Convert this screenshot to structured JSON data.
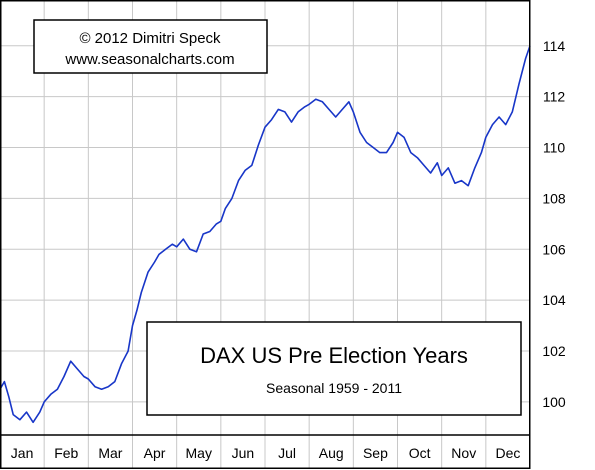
{
  "chart_data": {
    "type": "line",
    "title": "DAX US Pre Election Years",
    "subtitle": "Seasonal 1959 - 2011",
    "copyright": "© 2012  Dimitri Speck",
    "website": "www.seasonalcharts.com",
    "xlabel": "",
    "ylabel": "",
    "categories": [
      "Jan",
      "Feb",
      "Mar",
      "Apr",
      "May",
      "Jun",
      "Jul",
      "Aug",
      "Sep",
      "Oct",
      "Nov",
      "Dec"
    ],
    "ylim": [
      98.7,
      115.8
    ],
    "y_ticks": [
      100,
      102,
      104,
      106,
      108,
      110,
      112,
      114
    ],
    "grid": true,
    "line_color": "#1836c8",
    "series": [
      {
        "x": [
          0.0,
          0.1,
          0.2,
          0.3,
          0.45,
          0.6,
          0.75,
          0.9,
          1.0,
          1.15,
          1.3,
          1.45,
          1.6,
          1.75,
          1.9,
          2.0,
          2.15,
          2.3,
          2.45,
          2.6,
          2.75,
          2.9,
          3.0,
          3.1,
          3.2,
          3.35,
          3.5,
          3.6,
          3.75,
          3.9,
          4.0,
          4.15,
          4.3,
          4.45,
          4.6,
          4.75,
          4.9,
          5.0,
          5.1,
          5.25,
          5.4,
          5.55,
          5.7,
          5.85,
          6.0,
          6.15,
          6.3,
          6.45,
          6.6,
          6.75,
          6.9,
          7.0,
          7.15,
          7.3,
          7.45,
          7.6,
          7.75,
          7.9,
          8.0,
          8.15,
          8.3,
          8.45,
          8.6,
          8.75,
          8.9,
          9.0,
          9.15,
          9.3,
          9.45,
          9.6,
          9.75,
          9.9,
          10.0,
          10.15,
          10.3,
          10.45,
          10.6,
          10.75,
          10.9,
          11.0,
          11.15,
          11.3,
          11.45,
          11.6,
          11.75,
          11.9,
          12.0
        ],
        "values": [
          100.5,
          100.8,
          100.2,
          99.5,
          99.3,
          99.6,
          99.2,
          99.6,
          100.0,
          100.3,
          100.5,
          101.0,
          101.6,
          101.3,
          101.0,
          100.9,
          100.6,
          100.5,
          100.6,
          100.8,
          101.5,
          102.0,
          103.0,
          103.6,
          104.3,
          105.1,
          105.5,
          105.8,
          106.0,
          106.2,
          106.1,
          106.4,
          106.0,
          105.9,
          106.6,
          106.7,
          107.0,
          107.1,
          107.6,
          108.0,
          108.7,
          109.1,
          109.3,
          110.1,
          110.8,
          111.1,
          111.5,
          111.4,
          111.0,
          111.4,
          111.6,
          111.7,
          111.9,
          111.8,
          111.5,
          111.2,
          111.5,
          111.8,
          111.4,
          110.6,
          110.2,
          110.0,
          109.8,
          109.8,
          110.2,
          110.6,
          110.4,
          109.8,
          109.6,
          109.3,
          109.0,
          109.4,
          108.9,
          109.2,
          108.6,
          108.7,
          108.5,
          109.2,
          109.8,
          110.4,
          110.9,
          111.2,
          110.9,
          111.4,
          112.5,
          113.5,
          114.0
        ]
      }
    ]
  }
}
